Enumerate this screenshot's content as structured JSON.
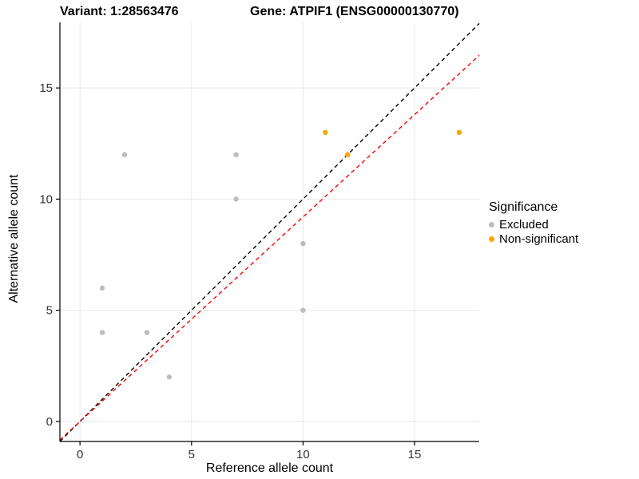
{
  "header": {
    "variant_label": "Variant: 1:28563476",
    "gene_label": "Gene: ATPIF1 (ENSG00000130770)"
  },
  "chart_data": {
    "type": "scatter",
    "title": "",
    "xlabel": "Reference allele count",
    "ylabel": "Alternative allele count",
    "xlim": [
      -0.9,
      17.9
    ],
    "ylim": [
      -0.9,
      17.95
    ],
    "xticks": [
      0,
      5,
      10,
      15
    ],
    "yticks": [
      0,
      5,
      10,
      15
    ],
    "grid": "major",
    "grid_color": "#e8e8e8",
    "axis_color": "#000000",
    "tick_label_color": "#333333",
    "point_radius": 3.2,
    "series": [
      {
        "name": "Excluded",
        "color": "#bdbdbd",
        "points": [
          [
            1,
            4
          ],
          [
            1,
            6
          ],
          [
            2,
            12
          ],
          [
            3,
            4
          ],
          [
            4,
            2
          ],
          [
            7,
            10
          ],
          [
            7,
            12
          ],
          [
            10,
            5
          ],
          [
            10,
            8
          ]
        ]
      },
      {
        "name": "Non-significant",
        "color": "#ffa500",
        "points": [
          [
            11,
            13
          ],
          [
            12,
            12
          ],
          [
            17,
            13
          ]
        ]
      }
    ],
    "lines": [
      {
        "name": "identity-line",
        "color": "#000000",
        "slope": 1,
        "intercept": 0,
        "dash": "5,4"
      },
      {
        "name": "fit-line",
        "color": "#ff0000",
        "slope": 0.92,
        "intercept": 0,
        "dash": "5,4"
      }
    ],
    "legend": {
      "title": "Significance",
      "position": "right",
      "entries": [
        {
          "label": "Excluded",
          "color": "#bdbdbd"
        },
        {
          "label": "Non-significant",
          "color": "#ffa500"
        }
      ]
    }
  }
}
